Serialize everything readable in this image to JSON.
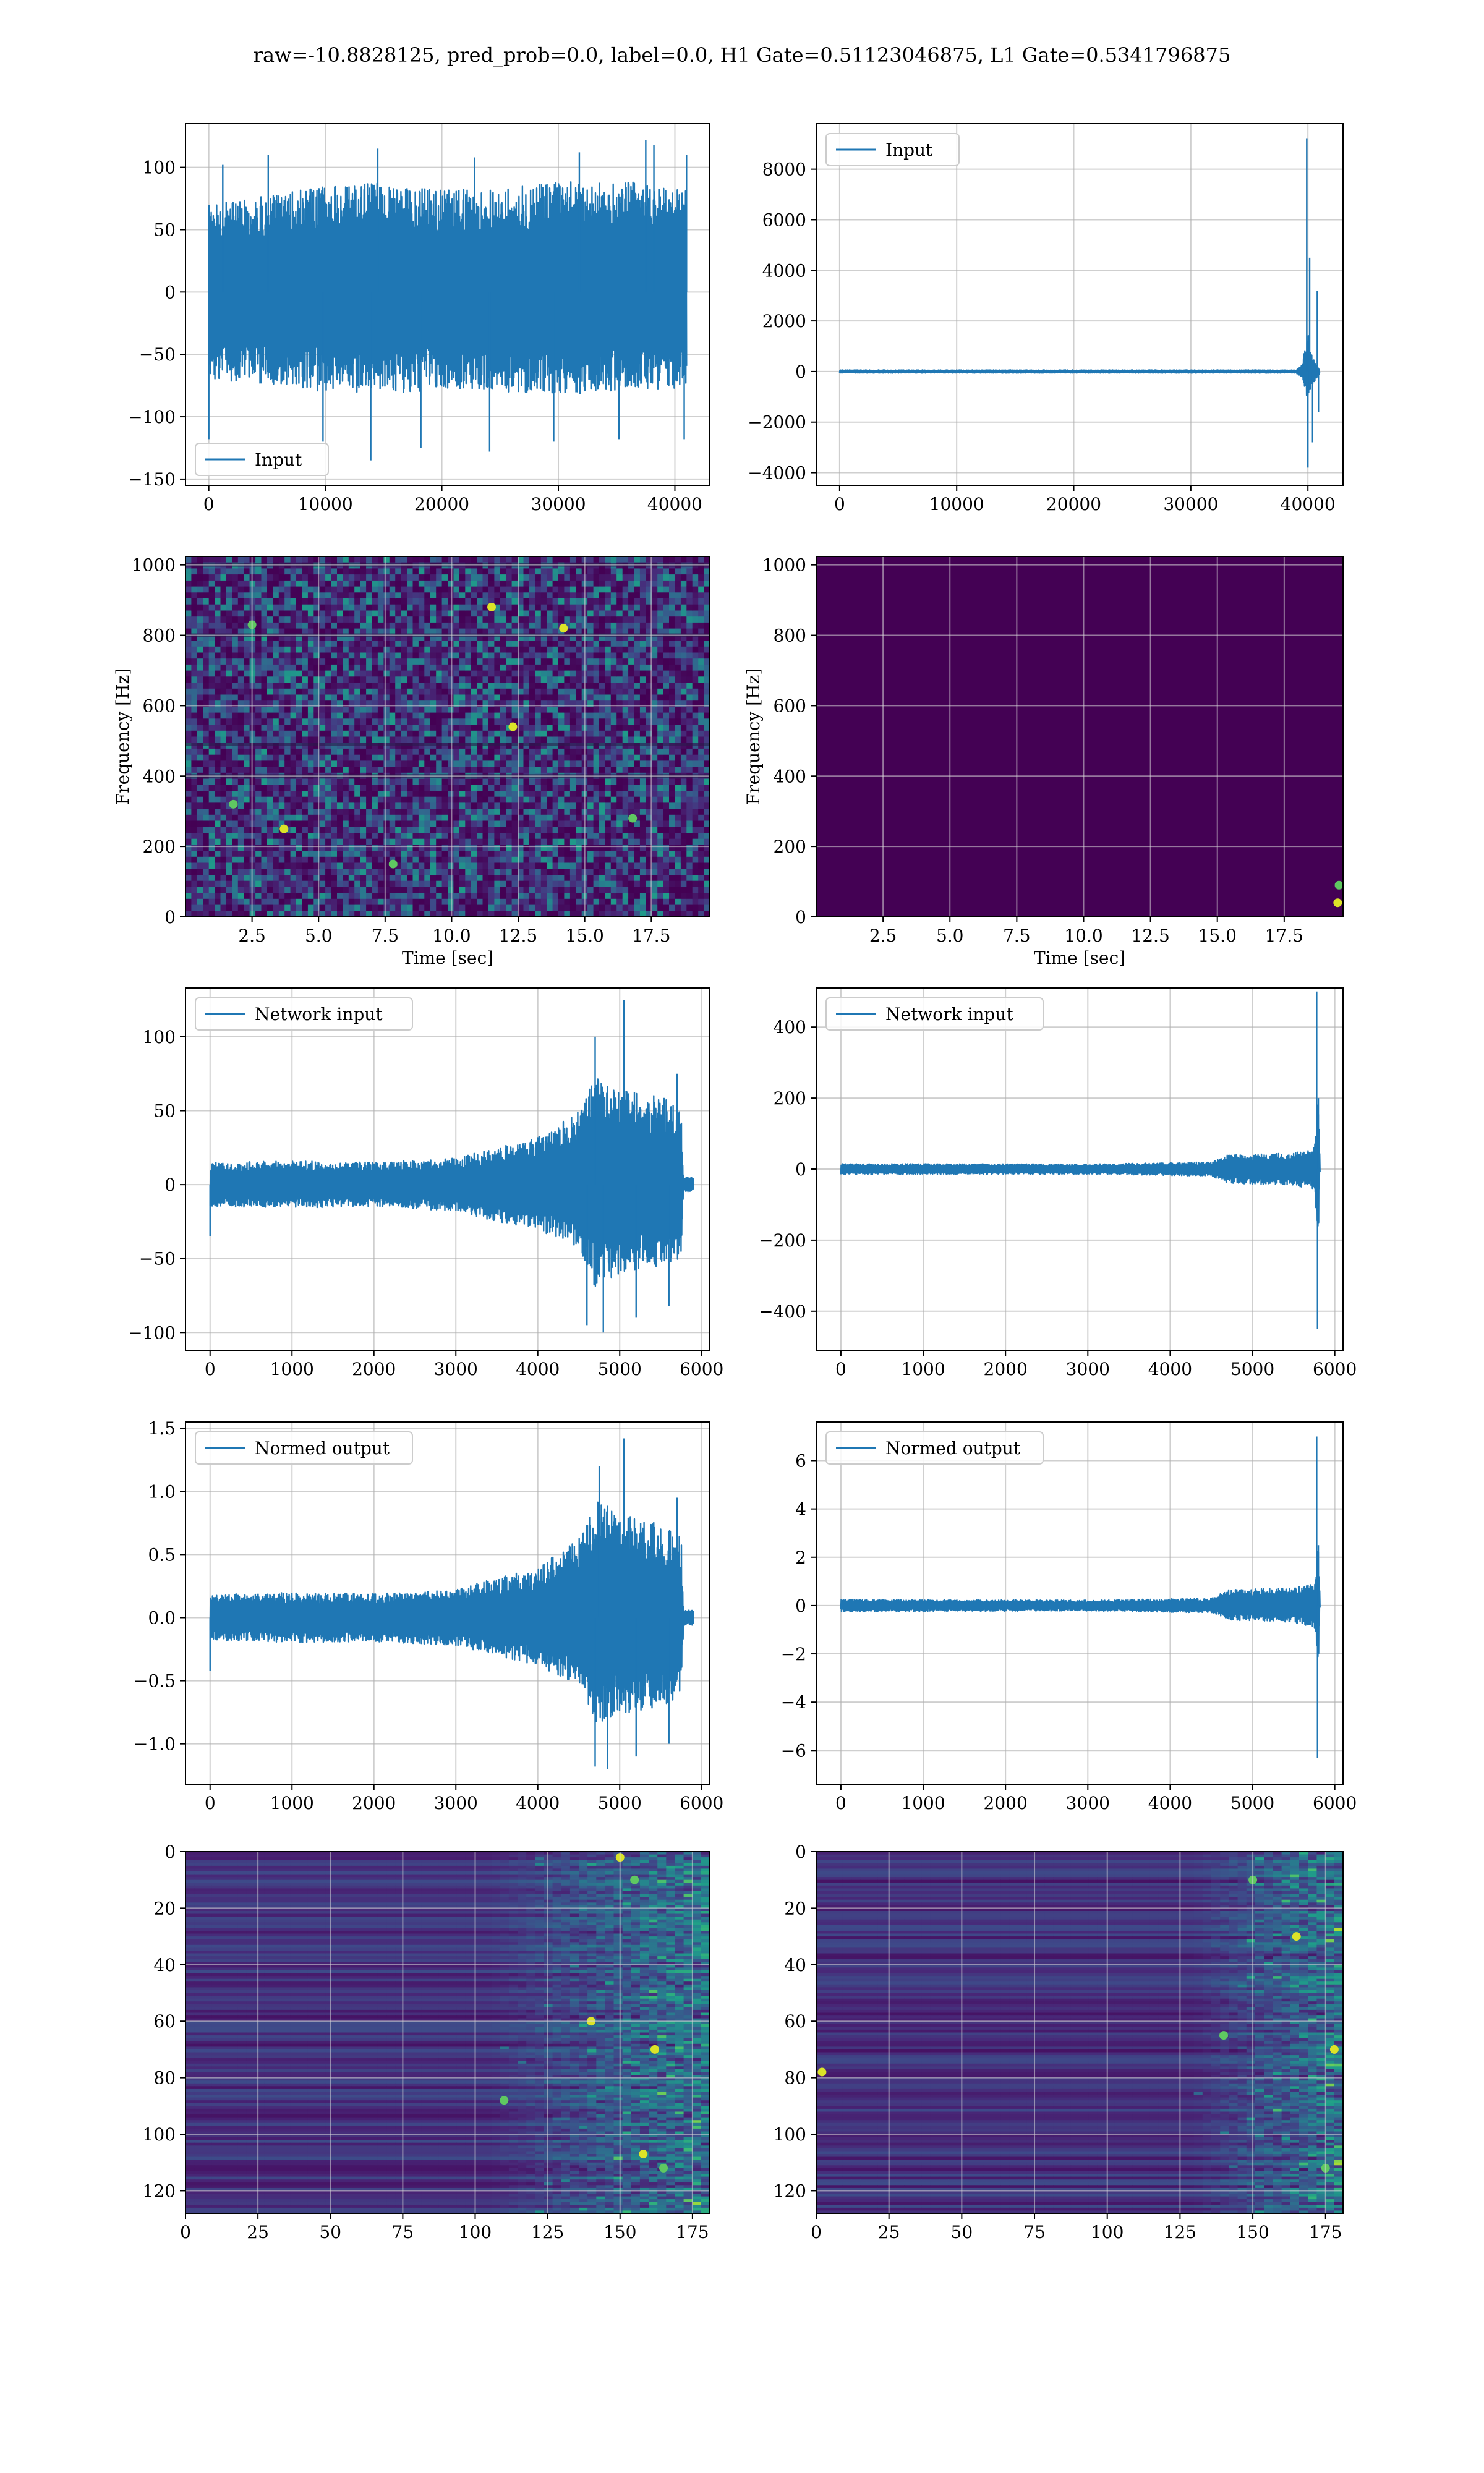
{
  "figure": {
    "suptitle": "raw=-10.8828125, pred_prob=0.0, label=0.0, H1 Gate=0.51123046875, L1 Gate=0.5341796875"
  },
  "chart_data": [
    {
      "id": "input-h1",
      "type": "line",
      "title": "",
      "legend": {
        "label": "Input",
        "placement": "lower-left"
      },
      "series": [
        {
          "name": "Input",
          "color": "#1f77b4",
          "envelope": [
            [
              0,
              -70,
              70
            ],
            [
              5000,
              -75,
              78
            ],
            [
              10000,
              -80,
              85
            ],
            [
              15000,
              -82,
              88
            ],
            [
              20000,
              -78,
              82
            ],
            [
              25000,
              -80,
              85
            ],
            [
              30000,
              -82,
              88
            ],
            [
              35000,
              -80,
              90
            ],
            [
              41000,
              -78,
              82
            ]
          ],
          "extremes": [
            [
              0,
              -118
            ],
            [
              1200,
              102
            ],
            [
              5100,
              110
            ],
            [
              9800,
              -120
            ],
            [
              13900,
              -135
            ],
            [
              14500,
              115
            ],
            [
              18200,
              -125
            ],
            [
              22800,
              108
            ],
            [
              24100,
              -128
            ],
            [
              29600,
              -120
            ],
            [
              31800,
              112
            ],
            [
              35200,
              -118
            ],
            [
              37500,
              122
            ],
            [
              38200,
              118
            ],
            [
              40800,
              -118
            ],
            [
              41000,
              110
            ]
          ]
        }
      ],
      "xlim": [
        -2000,
        43000
      ],
      "ylim": [
        -155,
        135
      ],
      "xticks": [
        0,
        10000,
        20000,
        30000,
        40000
      ],
      "xtick_labels": [
        "0",
        "10000",
        "20000",
        "30000",
        "40000"
      ],
      "yticks": [
        -150,
        -100,
        -50,
        0,
        50,
        100
      ],
      "ytick_labels": [
        "−150",
        "−100",
        "−50",
        "0",
        "50",
        "100"
      ],
      "xlabel": "",
      "ylabel": "",
      "grid": true
    },
    {
      "id": "input-l1",
      "type": "line",
      "title": "",
      "legend": {
        "label": "Input",
        "placement": "upper-left"
      },
      "series": [
        {
          "name": "Input",
          "color": "#1f77b4",
          "envelope": [
            [
              0,
              -60,
              60
            ],
            [
              39000,
              -60,
              60
            ],
            [
              39500,
              -250,
              300
            ],
            [
              40000,
              -1200,
              1500
            ],
            [
              40300,
              -600,
              800
            ],
            [
              41000,
              -80,
              80
            ]
          ],
          "extremes": [
            [
              39900,
              9200
            ],
            [
              40000,
              -3800
            ],
            [
              40150,
              4500
            ],
            [
              40400,
              -2800
            ],
            [
              40800,
              3200
            ],
            [
              40900,
              -1600
            ]
          ]
        }
      ],
      "xlim": [
        -2000,
        43000
      ],
      "ylim": [
        -4500,
        9800
      ],
      "xticks": [
        0,
        10000,
        20000,
        30000,
        40000
      ],
      "xtick_labels": [
        "0",
        "10000",
        "20000",
        "30000",
        "40000"
      ],
      "yticks": [
        -4000,
        -2000,
        0,
        2000,
        4000,
        6000,
        8000
      ],
      "ytick_labels": [
        "−4000",
        "−2000",
        "0",
        "2000",
        "4000",
        "6000",
        "8000"
      ],
      "xlabel": "",
      "ylabel": "",
      "grid": true
    },
    {
      "id": "spectrogram-h1",
      "type": "heatmap",
      "title": "",
      "colormap": "viridis",
      "background": "#3b0f70",
      "noise_level": 0.55,
      "hotspots": [
        [
          11.5,
          880
        ],
        [
          2.5,
          830
        ],
        [
          3.7,
          250
        ],
        [
          16.8,
          280
        ],
        [
          12.3,
          540
        ],
        [
          1.8,
          320
        ],
        [
          14.2,
          820
        ],
        [
          7.8,
          150
        ]
      ],
      "xlim": [
        0,
        19.7
      ],
      "ylim": [
        0,
        1024
      ],
      "xticks": [
        2.5,
        5.0,
        7.5,
        10.0,
        12.5,
        15.0,
        17.5
      ],
      "xtick_labels": [
        "2.5",
        "5.0",
        "7.5",
        "10.0",
        "12.5",
        "15.0",
        "17.5"
      ],
      "yticks": [
        0,
        200,
        400,
        600,
        800,
        1000
      ],
      "ytick_labels": [
        "0",
        "200",
        "400",
        "600",
        "800",
        "1000"
      ],
      "xlabel": "Time [sec]",
      "ylabel": "Frequency [Hz]",
      "grid": true
    },
    {
      "id": "spectrogram-l1",
      "type": "heatmap",
      "title": "",
      "colormap": "viridis",
      "background": "#440154",
      "noise_level": 0.0,
      "hotspots": [
        [
          19.5,
          40
        ],
        [
          19.55,
          90
        ]
      ],
      "xlim": [
        0,
        19.7
      ],
      "ylim": [
        0,
        1024
      ],
      "xticks": [
        2.5,
        5.0,
        7.5,
        10.0,
        12.5,
        15.0,
        17.5
      ],
      "xtick_labels": [
        "2.5",
        "5.0",
        "7.5",
        "10.0",
        "12.5",
        "15.0",
        "17.5"
      ],
      "yticks": [
        0,
        200,
        400,
        600,
        800,
        1000
      ],
      "ytick_labels": [
        "0",
        "200",
        "400",
        "600",
        "800",
        "1000"
      ],
      "xlabel": "Time [sec]",
      "ylabel": "Frequency [Hz]",
      "grid": true
    },
    {
      "id": "network-input-h1",
      "type": "line",
      "title": "",
      "legend": {
        "label": "Network input",
        "placement": "upper-left"
      },
      "series": [
        {
          "name": "Network input",
          "color": "#1f77b4",
          "envelope": [
            [
              0,
              -15,
              15
            ],
            [
              1000,
              -16,
              16
            ],
            [
              2000,
              -15,
              15
            ],
            [
              3000,
              -18,
              18
            ],
            [
              3500,
              -25,
              25
            ],
            [
              4000,
              -30,
              32
            ],
            [
              4500,
              -45,
              50
            ],
            [
              4700,
              -70,
              75
            ],
            [
              5000,
              -60,
              65
            ],
            [
              5500,
              -55,
              60
            ],
            [
              5750,
              -50,
              50
            ],
            [
              5780,
              -5,
              5
            ],
            [
              5900,
              -5,
              5
            ]
          ],
          "extremes": [
            [
              0,
              -35
            ],
            [
              4600,
              -95
            ],
            [
              4700,
              100
            ],
            [
              4800,
              -100
            ],
            [
              5050,
              125
            ],
            [
              5200,
              -90
            ],
            [
              5600,
              -82
            ],
            [
              5700,
              75
            ]
          ]
        }
      ],
      "xlim": [
        -300,
        6100
      ],
      "ylim": [
        -112,
        133
      ],
      "xticks": [
        0,
        1000,
        2000,
        3000,
        4000,
        5000,
        6000
      ],
      "xtick_labels": [
        "0",
        "1000",
        "2000",
        "3000",
        "4000",
        "5000",
        "6000"
      ],
      "yticks": [
        -100,
        -50,
        0,
        50,
        100
      ],
      "ytick_labels": [
        "−100",
        "−50",
        "0",
        "50",
        "100"
      ],
      "xlabel": "",
      "ylabel": "",
      "grid": true
    },
    {
      "id": "network-input-l1",
      "type": "line",
      "title": "",
      "legend": {
        "label": "Network input",
        "placement": "upper-left"
      },
      "series": [
        {
          "name": "Network input",
          "color": "#1f77b4",
          "envelope": [
            [
              0,
              -15,
              15
            ],
            [
              3000,
              -14,
              14
            ],
            [
              4500,
              -20,
              20
            ],
            [
              4700,
              -40,
              40
            ],
            [
              5500,
              -45,
              45
            ],
            [
              5750,
              -60,
              60
            ],
            [
              5800,
              -180,
              220
            ],
            [
              5820,
              -10,
              10
            ]
          ],
          "extremes": [
            [
              5780,
              500
            ],
            [
              5790,
              -450
            ],
            [
              5800,
              200
            ]
          ]
        }
      ],
      "xlim": [
        -300,
        6100
      ],
      "ylim": [
        -510,
        510
      ],
      "xticks": [
        0,
        1000,
        2000,
        3000,
        4000,
        5000,
        6000
      ],
      "xtick_labels": [
        "0",
        "1000",
        "2000",
        "3000",
        "4000",
        "5000",
        "6000"
      ],
      "yticks": [
        -400,
        -200,
        0,
        200,
        400
      ],
      "ytick_labels": [
        "−400",
        "−200",
        "0",
        "200",
        "400"
      ],
      "xlabel": "",
      "ylabel": "",
      "grid": true
    },
    {
      "id": "normed-output-h1",
      "type": "line",
      "title": "",
      "legend": {
        "label": "Normed output",
        "placement": "upper-left"
      },
      "series": [
        {
          "name": "Normed output",
          "color": "#1f77b4",
          "envelope": [
            [
              0,
              -0.18,
              0.18
            ],
            [
              1000,
              -0.2,
              0.2
            ],
            [
              2000,
              -0.19,
              0.19
            ],
            [
              3000,
              -0.22,
              0.22
            ],
            [
              3500,
              -0.3,
              0.32
            ],
            [
              4000,
              -0.38,
              0.4
            ],
            [
              4500,
              -0.55,
              0.62
            ],
            [
              4700,
              -0.85,
              0.95
            ],
            [
              5000,
              -0.78,
              0.82
            ],
            [
              5500,
              -0.7,
              0.75
            ],
            [
              5750,
              -0.65,
              0.65
            ],
            [
              5780,
              -0.06,
              0.06
            ],
            [
              5900,
              -0.06,
              0.06
            ]
          ],
          "extremes": [
            [
              0,
              -0.42
            ],
            [
              4700,
              -1.18
            ],
            [
              4750,
              1.2
            ],
            [
              4850,
              -1.2
            ],
            [
              5050,
              1.42
            ],
            [
              5200,
              -1.1
            ],
            [
              5600,
              -1.0
            ],
            [
              5700,
              0.95
            ]
          ]
        }
      ],
      "xlim": [
        -300,
        6100
      ],
      "ylim": [
        -1.32,
        1.55
      ],
      "xticks": [
        0,
        1000,
        2000,
        3000,
        4000,
        5000,
        6000
      ],
      "xtick_labels": [
        "0",
        "1000",
        "2000",
        "3000",
        "4000",
        "5000",
        "6000"
      ],
      "yticks": [
        -1.0,
        -0.5,
        0.0,
        0.5,
        1.0,
        1.5
      ],
      "ytick_labels": [
        "−1.0",
        "−0.5",
        "0.0",
        "0.5",
        "1.0",
        "1.5"
      ],
      "xlabel": "",
      "ylabel": "",
      "grid": true
    },
    {
      "id": "normed-output-l1",
      "type": "line",
      "title": "",
      "legend": {
        "label": "Normed output",
        "placement": "upper-left"
      },
      "series": [
        {
          "name": "Normed output",
          "color": "#1f77b4",
          "envelope": [
            [
              0,
              -0.25,
              0.25
            ],
            [
              3000,
              -0.22,
              0.22
            ],
            [
              4500,
              -0.3,
              0.3
            ],
            [
              4700,
              -0.6,
              0.65
            ],
            [
              5500,
              -0.7,
              0.75
            ],
            [
              5750,
              -0.9,
              0.9
            ],
            [
              5800,
              -2.5,
              3.0
            ],
            [
              5820,
              -0.1,
              0.1
            ]
          ],
          "extremes": [
            [
              5780,
              7.0
            ],
            [
              5790,
              -6.3
            ],
            [
              5800,
              2.5
            ]
          ]
        }
      ],
      "xlim": [
        -300,
        6100
      ],
      "ylim": [
        -7.4,
        7.6
      ],
      "xticks": [
        0,
        1000,
        2000,
        3000,
        4000,
        5000,
        6000
      ],
      "xtick_labels": [
        "0",
        "1000",
        "2000",
        "3000",
        "4000",
        "5000",
        "6000"
      ],
      "yticks": [
        -6,
        -4,
        -2,
        0,
        2,
        4,
        6
      ],
      "ytick_labels": [
        "−6",
        "−4",
        "−2",
        "0",
        "2",
        "4",
        "6"
      ],
      "xlabel": "",
      "ylabel": "",
      "grid": true
    },
    {
      "id": "feature-map-h1",
      "type": "heatmap",
      "title": "",
      "colormap": "viridis",
      "activity_onset": 105,
      "inverted_y": true,
      "hotspots": [
        [
          150,
          2
        ],
        [
          155,
          10
        ],
        [
          162,
          70
        ],
        [
          110,
          88
        ],
        [
          158,
          107
        ],
        [
          165,
          112
        ],
        [
          140,
          60
        ]
      ],
      "xlim": [
        0,
        181
      ],
      "ylim": [
        0,
        128
      ],
      "xticks": [
        0,
        25,
        50,
        75,
        100,
        125,
        150,
        175
      ],
      "xtick_labels": [
        "0",
        "25",
        "50",
        "75",
        "100",
        "125",
        "150",
        "175"
      ],
      "yticks": [
        0,
        20,
        40,
        60,
        80,
        100,
        120
      ],
      "ytick_labels": [
        "0",
        "20",
        "40",
        "60",
        "80",
        "100",
        "120"
      ],
      "xlabel": "",
      "ylabel": "",
      "grid": true
    },
    {
      "id": "feature-map-l1",
      "type": "heatmap",
      "title": "",
      "colormap": "viridis",
      "activity_onset": 130,
      "inverted_y": true,
      "hotspots": [
        [
          178,
          70
        ],
        [
          175,
          112
        ],
        [
          2,
          78
        ],
        [
          140,
          65
        ],
        [
          165,
          30
        ],
        [
          150,
          10
        ]
      ],
      "xlim": [
        0,
        181
      ],
      "ylim": [
        0,
        128
      ],
      "xticks": [
        0,
        25,
        50,
        75,
        100,
        125,
        150,
        175
      ],
      "xtick_labels": [
        "0",
        "25",
        "50",
        "75",
        "100",
        "125",
        "150",
        "175"
      ],
      "yticks": [
        0,
        20,
        40,
        60,
        80,
        100,
        120
      ],
      "ytick_labels": [
        "0",
        "20",
        "40",
        "60",
        "80",
        "100",
        "120"
      ],
      "xlabel": "",
      "ylabel": "",
      "grid": true
    }
  ]
}
